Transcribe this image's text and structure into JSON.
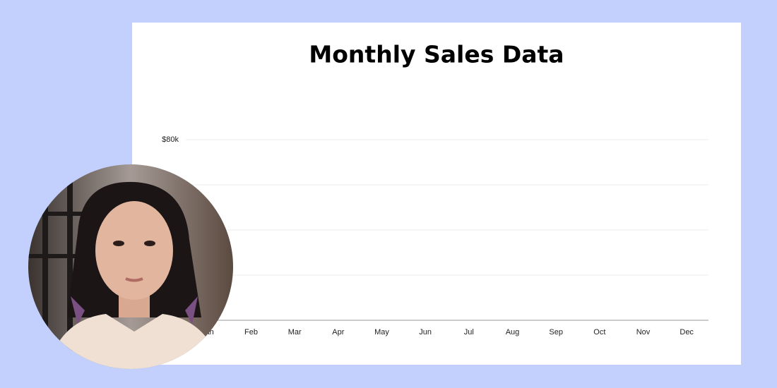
{
  "chart_data": {
    "type": "bar",
    "title": "Monthly Sales Data",
    "categories": [
      "Jan",
      "Feb",
      "Mar",
      "Apr",
      "May",
      "Jun",
      "Jul",
      "Aug",
      "Sep",
      "Oct",
      "Nov",
      "Dec"
    ],
    "ylim": [
      0,
      80000
    ],
    "yticks": [
      {
        "value": 0,
        "label": null
      },
      {
        "value": 20000,
        "label": null
      },
      {
        "value": 40000,
        "label": null
      },
      {
        "value": 60000,
        "label": null
      },
      {
        "value": 80000,
        "label": "$80k"
      }
    ],
    "grid": true
  }
}
